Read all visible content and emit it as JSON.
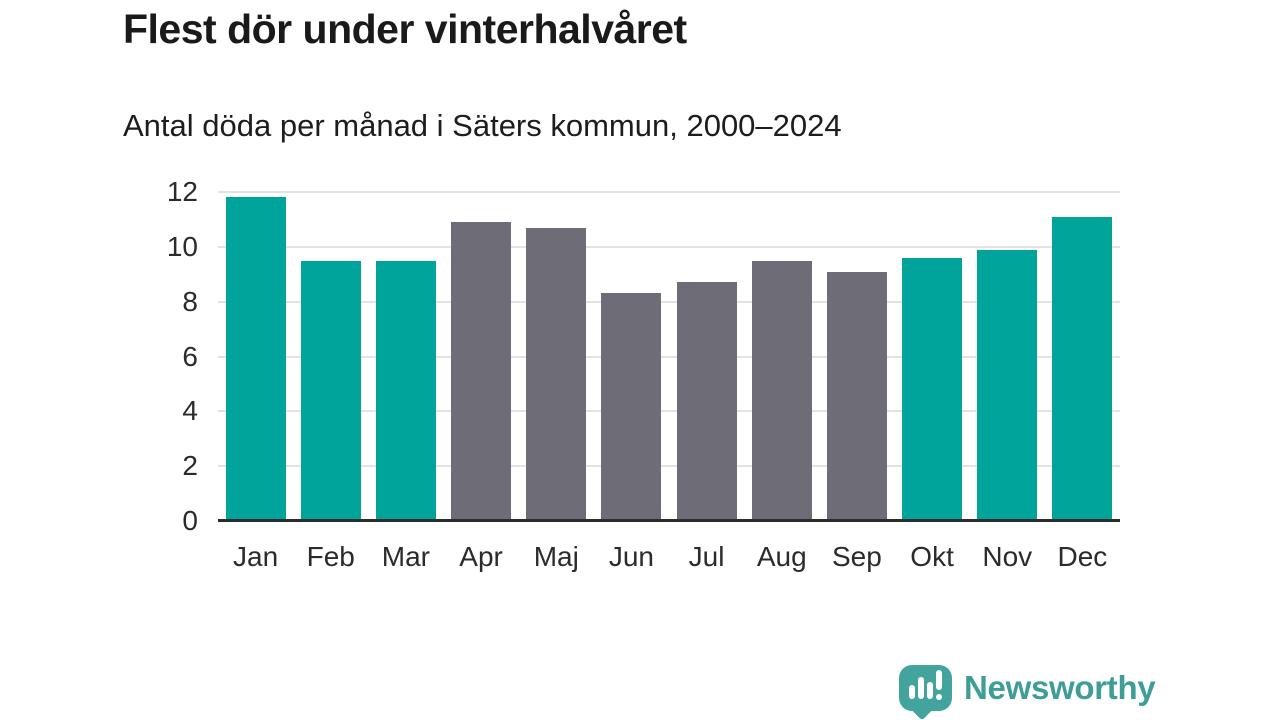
{
  "title": "Flest dör under vinterhalvåret",
  "subtitle": "Antal döda per månad i Säters kommun, 2000–2024",
  "branding": {
    "name": "Newsworthy",
    "icon": "bar-chart-speech-bubble-icon",
    "text_color": "#3f9d98",
    "icon_color": "#43a39d"
  },
  "chart_data": {
    "type": "bar",
    "title": "Flest dör under vinterhalvåret",
    "subtitle": "Antal döda per månad i Säters kommun, 2000–2024",
    "categories": [
      "Jan",
      "Feb",
      "Mar",
      "Apr",
      "Maj",
      "Jun",
      "Jul",
      "Aug",
      "Sep",
      "Okt",
      "Nov",
      "Dec"
    ],
    "values": [
      11.8,
      9.5,
      9.5,
      10.9,
      10.7,
      8.3,
      8.7,
      9.5,
      9.1,
      9.6,
      9.9,
      11.1
    ],
    "bar_color_keys": [
      "highlight",
      "highlight",
      "highlight",
      "base",
      "base",
      "base",
      "base",
      "base",
      "base",
      "highlight",
      "highlight",
      "highlight"
    ],
    "colors": {
      "highlight": "#00a49a",
      "base": "#6e6c76"
    },
    "highlight_meaning": "winter-half-year months",
    "xlabel": "",
    "ylabel": "",
    "ylim": [
      0,
      12
    ],
    "yticks": [
      0,
      2,
      4,
      6,
      8,
      10,
      12
    ],
    "grid": true,
    "legend": false,
    "axis_text_color": "#2b2b2b",
    "gridline_color": "#e3e3e3",
    "baseline_color": "#2c2c2c"
  }
}
